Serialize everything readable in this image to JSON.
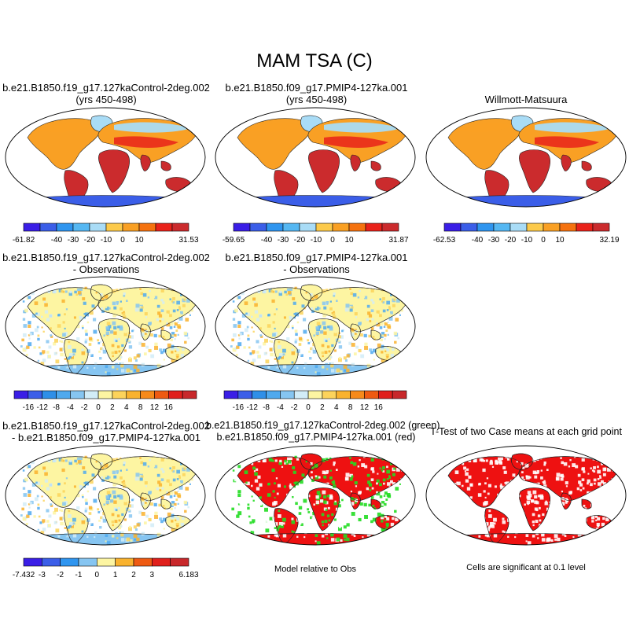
{
  "figure": {
    "title": "MAM TSA (C)"
  },
  "panels": [
    {
      "id": "p1",
      "title_lines": [
        "b.e21.B1850.f19_g17.127kaControl-2deg.002",
        "(yrs 450-498)"
      ],
      "colorbar": {
        "colors": [
          "#3a1ee6",
          "#3b5ee8",
          "#2f95ef",
          "#55b7f2",
          "#a9dcf6",
          "#fcca4b",
          "#f9a024",
          "#f5720f",
          "#e9221a",
          "#cb2b2d"
        ],
        "labels": [
          "-61.82",
          "",
          "-40",
          "-30",
          "-20",
          "-10",
          "0",
          "10",
          "",
          "31.53"
        ]
      }
    },
    {
      "id": "p2",
      "title_lines": [
        "b.e21.B1850.f09_g17.PMIP4-127ka.001",
        "(yrs 450-498)"
      ],
      "colorbar": {
        "colors": [
          "#3a1ee6",
          "#3b5ee8",
          "#2f95ef",
          "#55b7f2",
          "#a9dcf6",
          "#fcca4b",
          "#f9a024",
          "#f5720f",
          "#e9221a",
          "#cb2b2d"
        ],
        "labels": [
          "-59.65",
          "",
          "-40",
          "-30",
          "-20",
          "-10",
          "0",
          "10",
          "",
          "31.87"
        ]
      }
    },
    {
      "id": "p3",
      "title_lines": [
        "Willmott-Matsuura"
      ],
      "colorbar": {
        "colors": [
          "#3a1ee6",
          "#3b5ee8",
          "#2f95ef",
          "#55b7f2",
          "#a9dcf6",
          "#fcca4b",
          "#f9a024",
          "#f5720f",
          "#e9221a",
          "#cb2b2d"
        ],
        "labels": [
          "-62.53",
          "",
          "-40",
          "-30",
          "-20",
          "-10",
          "0",
          "10",
          "",
          "32.19"
        ]
      }
    },
    {
      "id": "p4",
      "title_lines": [
        "b.e21.B1850.f19_g17.127kaControl-2deg.002",
        "- Observations"
      ],
      "colorbar": {
        "colors": [
          "#3a1ee6",
          "#3b5ee8",
          "#2f8fe8",
          "#4fa9ee",
          "#86c5f1",
          "#d2ecf7",
          "#fdf5a2",
          "#fcd35b",
          "#f9b22e",
          "#f68a1a",
          "#ee5a12",
          "#e0201c",
          "#c8282b"
        ],
        "labels": [
          "",
          "-16",
          "-12",
          "-8",
          "-4",
          "-2",
          "0",
          "2",
          "4",
          "8",
          "12",
          "16",
          ""
        ]
      }
    },
    {
      "id": "p5",
      "title_lines": [
        "b.e21.B1850.f09_g17.PMIP4-127ka.001",
        "- Observations"
      ],
      "colorbar": {
        "colors": [
          "#3a1ee6",
          "#3b5ee8",
          "#2f8fe8",
          "#4fa9ee",
          "#86c5f1",
          "#d2ecf7",
          "#fdf5a2",
          "#fcd35b",
          "#f9b22e",
          "#f68a1a",
          "#ee5a12",
          "#e0201c",
          "#c8282b"
        ],
        "labels": [
          "",
          "-16",
          "-12",
          "-8",
          "-4",
          "-2",
          "0",
          "2",
          "4",
          "8",
          "12",
          "16",
          ""
        ]
      }
    },
    {
      "id": "p7",
      "title_lines": [
        "b.e21.B1850.f19_g17.127kaControl-2deg.002",
        "- b.e21.B1850.f09_g17.PMIP4-127ka.001"
      ],
      "colorbar": {
        "colors": [
          "#3a1ee6",
          "#3b5ee8",
          "#2f95ef",
          "#86c5f1",
          "#fdf5a2",
          "#f9b22e",
          "#ee5a12",
          "#e0201c",
          "#c8282b"
        ],
        "labels": [
          "-7.432",
          "-3",
          "-2",
          "-1",
          "0",
          "1",
          "2",
          "3",
          "6.183"
        ]
      }
    },
    {
      "id": "p8",
      "title_lines": [
        "b.e21.B1850.f19_g17.127kaControl-2deg.002 (green)",
        "b.e21.B1850.f09_g17.PMIP4-127ka.001 (red)"
      ],
      "note": "Model relative to Obs"
    },
    {
      "id": "p9",
      "title_lines": [
        "T-Test of two Case means at each grid point"
      ],
      "note": "Cells are significant at 0.1 level"
    }
  ],
  "colors": {
    "land_warm": "#cb2b2d",
    "land_hot": "#e9221a",
    "land_mid": "#f9a024",
    "land_cool": "#a9dcf6",
    "ice": "#3b5ee8",
    "diff_neutral": "#fdf5a2",
    "sig_green": "#22dd22",
    "sig_red": "#ee1111"
  }
}
